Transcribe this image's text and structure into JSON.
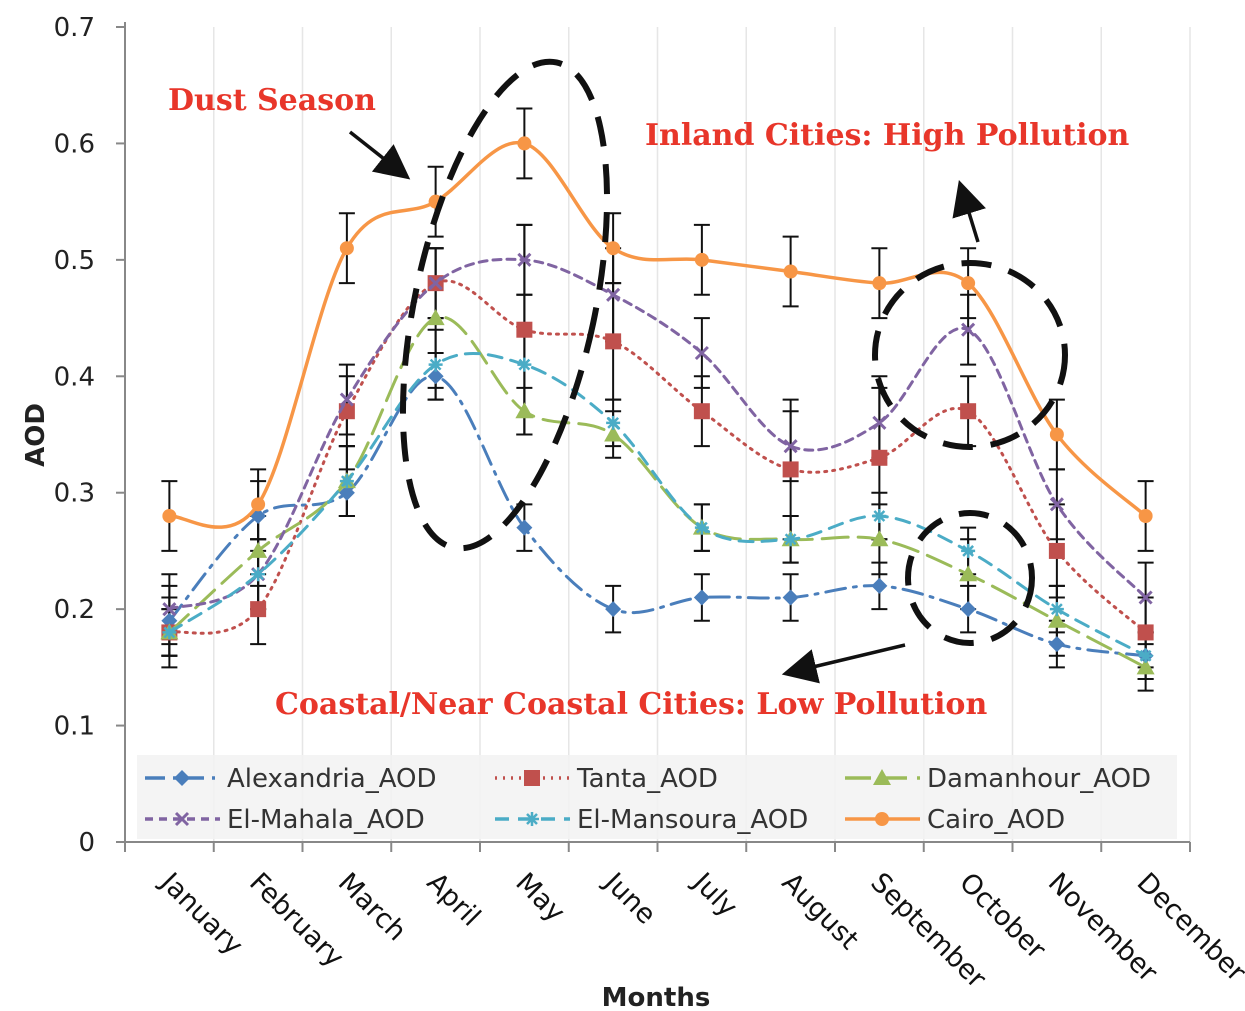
{
  "chart_data": {
    "type": "line",
    "xlabel": "Months",
    "ylabel": "AOD",
    "ylim": [
      0,
      0.7
    ],
    "yticks": [
      "0",
      "0.1",
      "0.2",
      "0.3",
      "0.4",
      "0.5",
      "0.6",
      "0.7"
    ],
    "categories": [
      "January",
      "February",
      "March",
      "April",
      "May",
      "June",
      "July",
      "August",
      "September",
      "October",
      "November",
      "December"
    ],
    "grid": "vertical",
    "legend_position": "bottom-inside",
    "series": [
      {
        "name": "Alexandria_AOD",
        "color": "#4a7ebb",
        "dash": "dash-dot",
        "marker": "diamond",
        "values": [
          0.19,
          0.28,
          0.3,
          0.4,
          0.27,
          0.2,
          0.21,
          0.21,
          0.22,
          0.2,
          0.17,
          0.16
        ],
        "errors": [
          0.03,
          0.03,
          0.02,
          0.02,
          0.02,
          0.02,
          0.02,
          0.02,
          0.02,
          0.02,
          0.02,
          0.02
        ]
      },
      {
        "name": "Tanta_AOD",
        "color": "#c0504d",
        "dash": "dotted",
        "marker": "square",
        "values": [
          0.18,
          0.2,
          0.37,
          0.48,
          0.44,
          0.43,
          0.37,
          0.32,
          0.33,
          0.37,
          0.25,
          0.18
        ],
        "errors": [
          0.03,
          0.03,
          0.03,
          0.03,
          0.09,
          0.05,
          0.03,
          0.06,
          0.07,
          0.03,
          0.04,
          0.03
        ]
      },
      {
        "name": "Damanhour_AOD",
        "color": "#9bbb59",
        "dash": "long-dash",
        "marker": "triangle",
        "values": [
          0.18,
          0.25,
          0.31,
          0.45,
          0.37,
          0.35,
          0.27,
          0.26,
          0.26,
          0.23,
          0.19,
          0.15
        ],
        "errors": [
          0.02,
          0.03,
          0.03,
          0.06,
          0.02,
          0.02,
          0.02,
          0.02,
          0.03,
          0.03,
          0.03,
          0.02
        ]
      },
      {
        "name": "El-Mahala_AOD",
        "color": "#8064a2",
        "dash": "short-dash",
        "marker": "x",
        "values": [
          0.2,
          0.23,
          0.38,
          0.48,
          0.5,
          0.47,
          0.42,
          0.34,
          0.36,
          0.44,
          0.29,
          0.21
        ],
        "errors": [
          0.03,
          0.03,
          0.03,
          0.03,
          0.03,
          0.04,
          0.03,
          0.03,
          0.03,
          0.03,
          0.03,
          0.03
        ]
      },
      {
        "name": "El-Mansoura_AOD",
        "color": "#4bacc6",
        "dash": "dash",
        "marker": "star",
        "values": [
          0.18,
          0.23,
          0.31,
          0.41,
          0.41,
          0.36,
          0.27,
          0.26,
          0.28,
          0.25,
          0.2,
          0.16
        ],
        "errors": [
          0.02,
          0.03,
          0.03,
          0.03,
          0.06,
          0.02,
          0.02,
          0.02,
          0.02,
          0.02,
          0.02,
          0.02
        ]
      },
      {
        "name": "Cairo_AOD",
        "color": "#f79646",
        "dash": "solid",
        "marker": "circle",
        "values": [
          0.28,
          0.29,
          0.51,
          0.55,
          0.6,
          0.51,
          0.5,
          0.49,
          0.48,
          0.48,
          0.35,
          0.28
        ],
        "errors": [
          0.03,
          0.03,
          0.03,
          0.03,
          0.03,
          0.03,
          0.03,
          0.03,
          0.03,
          0.03,
          0.03,
          0.03
        ]
      }
    ],
    "annotations": [
      {
        "text": "Dust Season",
        "color": "#e8362a"
      },
      {
        "text": "Inland Cities: High Pollution",
        "color": "#e8362a"
      },
      {
        "text": "Coastal/Near Coastal Cities: Low Pollution",
        "color": "#e8362a"
      }
    ]
  }
}
